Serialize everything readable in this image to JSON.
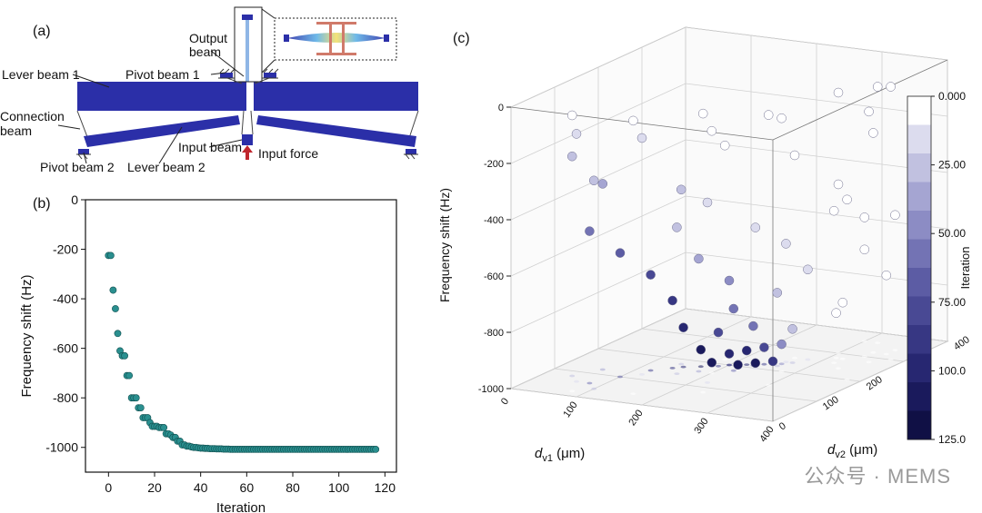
{
  "panel_a": {
    "label": "(a)",
    "annotations": {
      "output_beam": "Output\nbeam",
      "pivot_beam_1": "Pivot beam 1",
      "lever_beam_1": "Lever beam 1",
      "connection_beam": "Connection\nbeam",
      "input_beam": "Input beam",
      "input_force": "Input force",
      "pivot_beam_2": "Pivot beam 2",
      "lever_beam_2": "Lever beam 2"
    },
    "colors": {
      "beam": "#2b2fa8",
      "force_arrow": "#c0262d",
      "inset_frame": "#222222"
    }
  },
  "panel_b": {
    "label": "(b)",
    "chart_data": {
      "type": "scatter",
      "xlabel": "Iteration",
      "ylabel": "Frequency shift (Hz)",
      "xlim": [
        -10,
        125
      ],
      "ylim": [
        -1100,
        0
      ],
      "xticks": [
        0,
        20,
        40,
        60,
        80,
        100,
        120
      ],
      "yticks": [
        0,
        -200,
        -400,
        -600,
        -800,
        -1000
      ],
      "marker_color": "#2a8f8f",
      "points": [
        [
          0,
          -225
        ],
        [
          1,
          -225
        ],
        [
          2,
          -365
        ],
        [
          3,
          -440
        ],
        [
          4,
          -540
        ],
        [
          5,
          -610
        ],
        [
          6,
          -630
        ],
        [
          7,
          -630
        ],
        [
          8,
          -710
        ],
        [
          9,
          -710
        ],
        [
          10,
          -800
        ],
        [
          11,
          -800
        ],
        [
          12,
          -800
        ],
        [
          13,
          -840
        ],
        [
          14,
          -840
        ],
        [
          15,
          -880
        ],
        [
          16,
          -880
        ],
        [
          17,
          -880
        ],
        [
          18,
          -900
        ],
        [
          19,
          -915
        ],
        [
          20,
          -915
        ],
        [
          21,
          -915
        ],
        [
          22,
          -920
        ],
        [
          23,
          -920
        ],
        [
          24,
          -920
        ],
        [
          25,
          -945
        ],
        [
          26,
          -945
        ],
        [
          27,
          -950
        ],
        [
          28,
          -960
        ],
        [
          29,
          -960
        ],
        [
          30,
          -975
        ],
        [
          31,
          -975
        ],
        [
          32,
          -990
        ],
        [
          33,
          -990
        ],
        [
          34,
          -995
        ],
        [
          35,
          -995
        ],
        [
          36,
          -998
        ],
        [
          37,
          -1000
        ],
        [
          38,
          -1000
        ],
        [
          39,
          -1002
        ],
        [
          40,
          -1003
        ],
        [
          41,
          -1003
        ],
        [
          42,
          -1004
        ],
        [
          43,
          -1004
        ],
        [
          44,
          -1005
        ],
        [
          45,
          -1005
        ],
        [
          46,
          -1005
        ],
        [
          47,
          -1006
        ],
        [
          48,
          -1006
        ],
        [
          49,
          -1006
        ],
        [
          50,
          -1007
        ],
        [
          51,
          -1007
        ],
        [
          52,
          -1007
        ],
        [
          53,
          -1008
        ],
        [
          54,
          -1008
        ],
        [
          55,
          -1008
        ],
        [
          56,
          -1008
        ],
        [
          57,
          -1008
        ],
        [
          58,
          -1008
        ],
        [
          59,
          -1008
        ],
        [
          60,
          -1008
        ],
        [
          61,
          -1008
        ],
        [
          62,
          -1008
        ],
        [
          63,
          -1008
        ],
        [
          64,
          -1008
        ],
        [
          65,
          -1008
        ],
        [
          66,
          -1008
        ],
        [
          67,
          -1008
        ],
        [
          68,
          -1008
        ],
        [
          69,
          -1008
        ],
        [
          70,
          -1008
        ],
        [
          71,
          -1008
        ],
        [
          72,
          -1008
        ],
        [
          73,
          -1008
        ],
        [
          74,
          -1008
        ],
        [
          75,
          -1008
        ],
        [
          76,
          -1008
        ],
        [
          77,
          -1008
        ],
        [
          78,
          -1008
        ],
        [
          79,
          -1008
        ],
        [
          80,
          -1008
        ],
        [
          81,
          -1008
        ],
        [
          82,
          -1008
        ],
        [
          83,
          -1008
        ],
        [
          84,
          -1008
        ],
        [
          85,
          -1008
        ],
        [
          86,
          -1008
        ],
        [
          87,
          -1008
        ],
        [
          88,
          -1008
        ],
        [
          89,
          -1008
        ],
        [
          90,
          -1008
        ],
        [
          91,
          -1008
        ],
        [
          92,
          -1008
        ],
        [
          93,
          -1008
        ],
        [
          94,
          -1008
        ],
        [
          95,
          -1008
        ],
        [
          96,
          -1008
        ],
        [
          97,
          -1008
        ],
        [
          98,
          -1008
        ],
        [
          99,
          -1008
        ],
        [
          100,
          -1008
        ],
        [
          101,
          -1008
        ],
        [
          102,
          -1008
        ],
        [
          103,
          -1008
        ],
        [
          104,
          -1008
        ],
        [
          105,
          -1008
        ],
        [
          106,
          -1008
        ],
        [
          107,
          -1008
        ],
        [
          108,
          -1008
        ],
        [
          109,
          -1008
        ],
        [
          110,
          -1008
        ],
        [
          111,
          -1008
        ],
        [
          112,
          -1008
        ],
        [
          113,
          -1008
        ],
        [
          114,
          -1008
        ],
        [
          115,
          -1008
        ],
        [
          116,
          -1008
        ]
      ]
    }
  },
  "panel_c": {
    "label": "(c)",
    "chart_data": {
      "type": "scatter",
      "title": "",
      "zlabel": "Frequency shift (Hz)",
      "xlabel_main": "d",
      "xlabel_sub": "v1",
      "xlabel_unit": " (μm)",
      "ylabel_main": "d",
      "ylabel_sub": "v2",
      "ylabel_unit": " (μm)",
      "zticks": [
        0,
        -200,
        -400,
        -600,
        -800,
        -1000
      ],
      "zlim": [
        -1000,
        0
      ],
      "xticks": [
        0,
        100,
        200,
        300,
        400
      ],
      "yticks": [
        0,
        100,
        200,
        300,
        400
      ],
      "colorbar_title": "Iteration",
      "colorbar_ticks": [
        "0.000",
        "25.00",
        "50.00",
        "75.00",
        "100.0",
        "125.0"
      ],
      "colorbar_colors": [
        "#ffffff",
        "#dcdcee",
        "#c1c1e0",
        "#a5a5d2",
        "#8c8cc4",
        "#7373b4",
        "#5c5ca4",
        "#494994",
        "#373783",
        "#272771",
        "#1a1a5c",
        "#101045"
      ],
      "iteration_range": [
        0,
        125
      ],
      "points_xyz_iter": [
        [
          80,
          20,
          -20,
          5
        ],
        [
          160,
          40,
          -30,
          3
        ],
        [
          240,
          80,
          -10,
          2
        ],
        [
          300,
          140,
          -40,
          1
        ],
        [
          340,
          240,
          -20,
          8
        ],
        [
          380,
          300,
          -30,
          4
        ],
        [
          60,
          60,
          -120,
          20
        ],
        [
          120,
          120,
          -160,
          14
        ],
        [
          200,
          160,
          -140,
          9
        ],
        [
          280,
          200,
          -100,
          6
        ],
        [
          360,
          280,
          -110,
          2
        ],
        [
          320,
          360,
          -90,
          3
        ],
        [
          40,
          80,
          -220,
          30
        ],
        [
          100,
          40,
          -260,
          28
        ],
        [
          180,
          220,
          -240,
          10
        ],
        [
          260,
          260,
          -280,
          7
        ],
        [
          340,
          320,
          -220,
          4
        ],
        [
          380,
          380,
          -260,
          2
        ],
        [
          60,
          120,
          -340,
          40
        ],
        [
          140,
          180,
          -380,
          22
        ],
        [
          220,
          120,
          -360,
          12
        ],
        [
          300,
          300,
          -400,
          5
        ],
        [
          380,
          200,
          -360,
          3
        ],
        [
          80,
          60,
          -460,
          55
        ],
        [
          160,
          140,
          -480,
          30
        ],
        [
          240,
          200,
          -500,
          14
        ],
        [
          320,
          260,
          -460,
          6
        ],
        [
          360,
          340,
          -520,
          2
        ],
        [
          100,
          100,
          -560,
          65
        ],
        [
          180,
          160,
          -600,
          35
        ],
        [
          260,
          240,
          -580,
          15
        ],
        [
          340,
          300,
          -620,
          5
        ],
        [
          300,
          360,
          -560,
          4
        ],
        [
          120,
          140,
          -660,
          75
        ],
        [
          200,
          200,
          -700,
          45
        ],
        [
          280,
          260,
          -680,
          20
        ],
        [
          360,
          320,
          -720,
          6
        ],
        [
          140,
          160,
          -760,
          85
        ],
        [
          220,
          180,
          -780,
          60
        ],
        [
          260,
          220,
          -740,
          30
        ],
        [
          320,
          280,
          -800,
          10
        ],
        [
          380,
          360,
          -760,
          3
        ],
        [
          150,
          170,
          -860,
          95
        ],
        [
          190,
          190,
          -880,
          80
        ],
        [
          230,
          210,
          -860,
          55
        ],
        [
          270,
          240,
          -880,
          25
        ],
        [
          310,
          280,
          -840,
          10
        ],
        [
          170,
          180,
          -940,
          105
        ],
        [
          200,
          200,
          -960,
          100
        ],
        [
          220,
          210,
          -950,
          98
        ],
        [
          240,
          220,
          -940,
          80
        ],
        [
          260,
          230,
          -930,
          45
        ],
        [
          180,
          190,
          -990,
          110
        ],
        [
          210,
          205,
          -1000,
          112
        ],
        [
          230,
          215,
          -995,
          108
        ],
        [
          250,
          225,
          -990,
          90
        ]
      ]
    }
  },
  "watermark": "公众号 · MEMS"
}
